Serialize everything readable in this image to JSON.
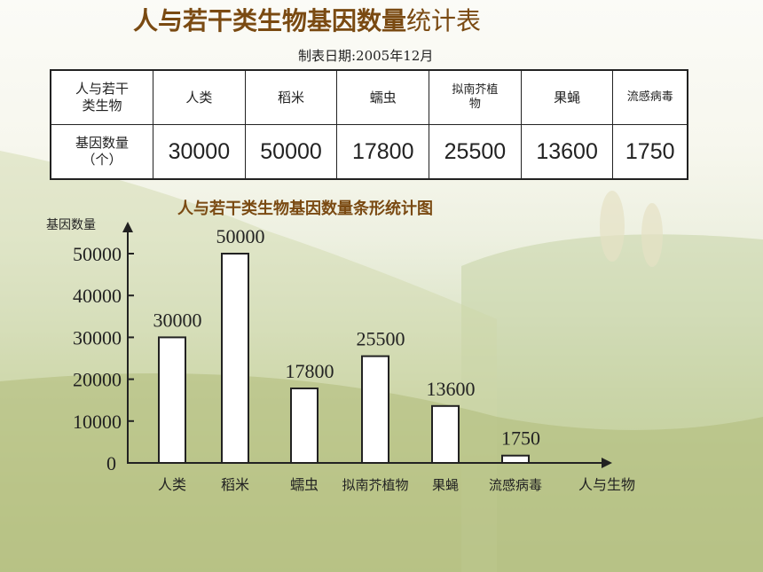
{
  "title_main": "人与若干类生物基因数量",
  "title_rest": "统计表",
  "date_text": "制表日期:2005年12月",
  "table": {
    "row1_header": "人与若干类生物",
    "row2_header": "基因数量（个）",
    "organisms": [
      "人类",
      "稻米",
      "蠕虫",
      "拟南芥植物",
      "果蝇",
      "流感病毒"
    ],
    "counts": [
      "30000",
      "50000",
      "17800",
      "25500",
      "13600",
      "1750"
    ]
  },
  "chart_data": {
    "type": "bar",
    "title": "人与若干类生物基因数量条形统计图",
    "ylabel": "基因数量",
    "xlabel": "人与生物",
    "categories": [
      "人类",
      "稻米",
      "蠕虫",
      "拟南芥植物",
      "果蝇",
      "流感病毒"
    ],
    "values": [
      30000,
      50000,
      17800,
      25500,
      13600,
      1750
    ],
    "yticks": [
      0,
      10000,
      20000,
      30000,
      40000,
      50000
    ],
    "ylim": [
      0,
      55000
    ],
    "grid": false,
    "legend": "none"
  }
}
